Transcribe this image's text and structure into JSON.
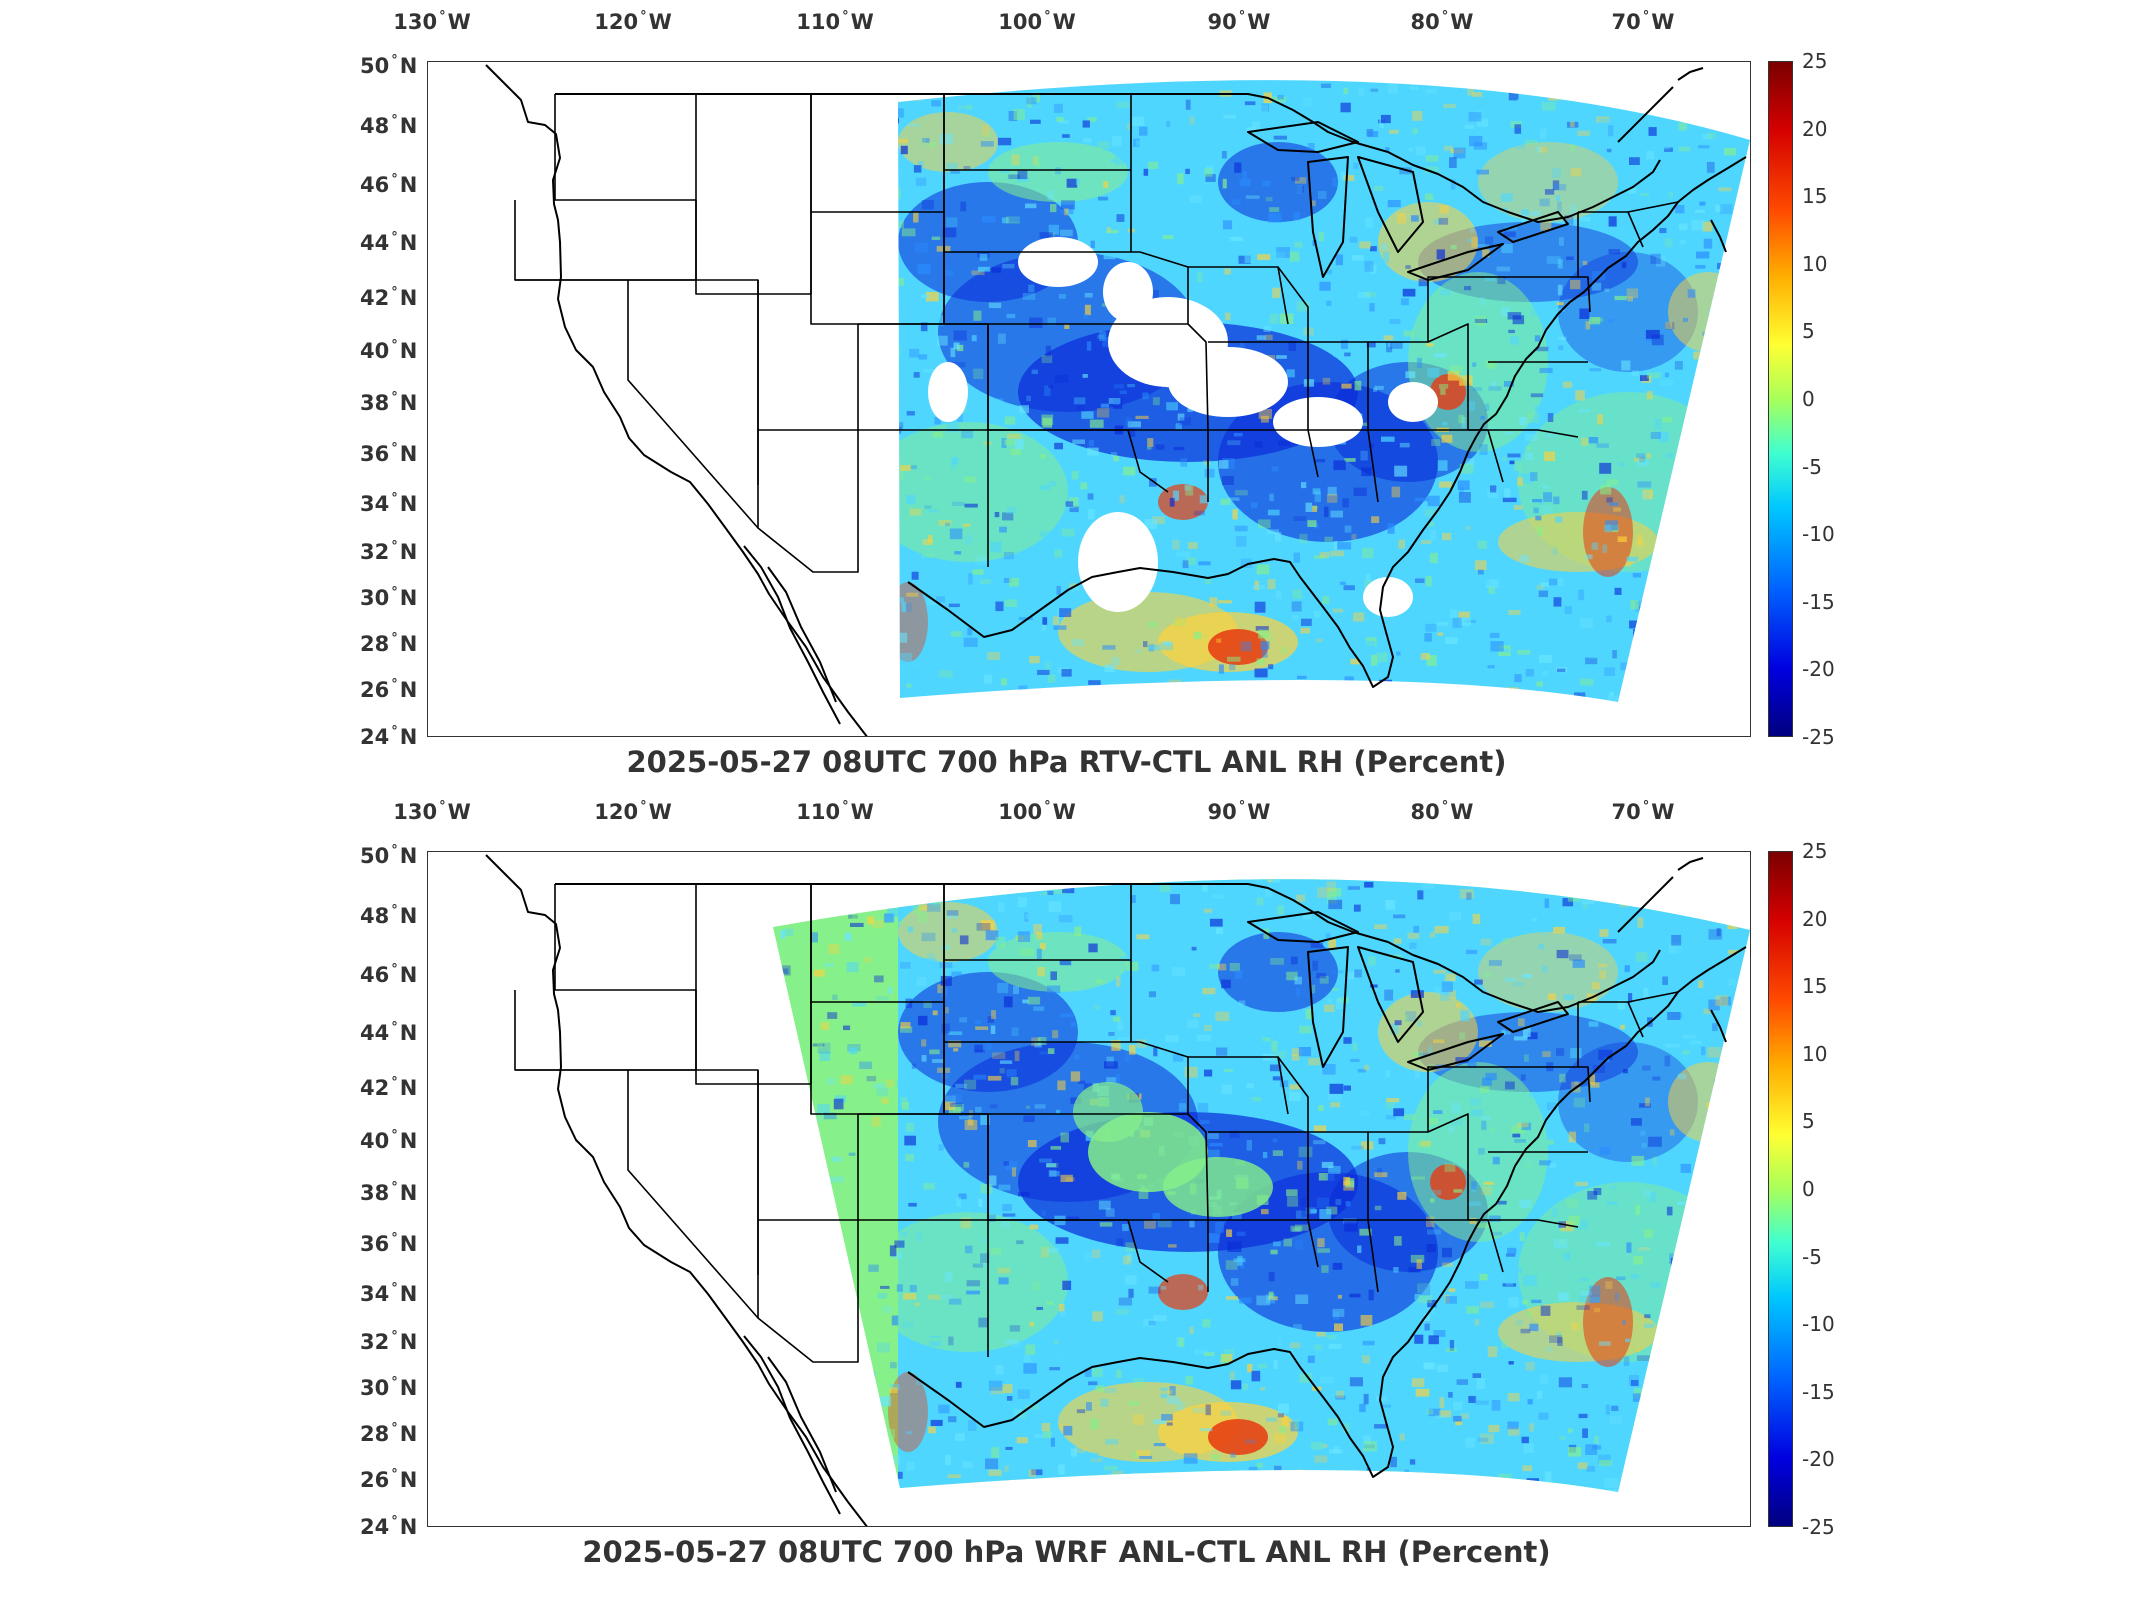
{
  "panels": [
    {
      "title": "2025-05-27 08UTC 700 hPa RTV-CTL ANL RH (Percent)",
      "variant": "rtv",
      "lon_labels": [
        "130",
        "120",
        "110",
        "100",
        "90",
        "80",
        "70"
      ],
      "lon_hemisphere": "W",
      "lat_labels": [
        "50",
        "48",
        "46",
        "44",
        "42",
        "40",
        "38",
        "36",
        "34",
        "32",
        "30",
        "28",
        "26",
        "24"
      ],
      "lat_hemisphere": "N",
      "colorbar_ticks": [
        "25",
        "20",
        "15",
        "10",
        "5",
        "0",
        "-5",
        "-10",
        "-15",
        "-20",
        "-25"
      ]
    },
    {
      "title": "2025-05-27 08UTC 700 hPa WRF ANL-CTL ANL RH (Percent)",
      "variant": "wrf",
      "lon_labels": [
        "130",
        "120",
        "110",
        "100",
        "90",
        "80",
        "70"
      ],
      "lon_hemisphere": "W",
      "lat_labels": [
        "50",
        "48",
        "46",
        "44",
        "42",
        "40",
        "38",
        "36",
        "34",
        "32",
        "30",
        "28",
        "26",
        "24"
      ],
      "lat_hemisphere": "N",
      "colorbar_ticks": [
        "25",
        "20",
        "15",
        "10",
        "5",
        "0",
        "-5",
        "-10",
        "-15",
        "-20",
        "-25"
      ]
    }
  ],
  "colors": {
    "field_base": "#4fd6ff",
    "neutral_green": "#86f08a",
    "strong_negative": "#0a2bd8",
    "positive": "#ffd23a",
    "strong_positive": "#e83a10",
    "missing": "#ffffff",
    "coast_line": "#000000"
  }
}
